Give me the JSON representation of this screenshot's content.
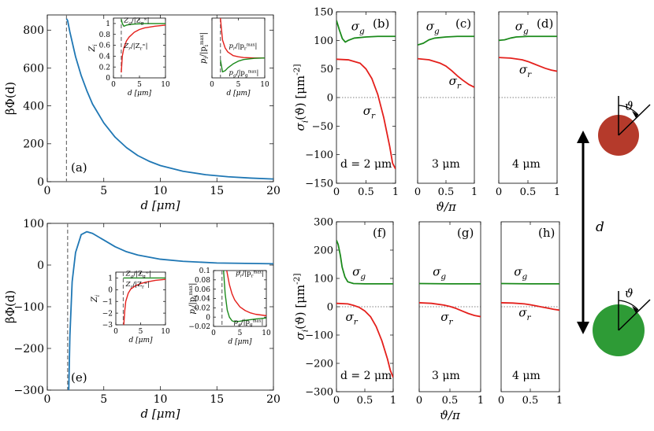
{
  "colors": {
    "blue": "#1f77b4",
    "green": "#1b8a1b",
    "red": "#e4201c",
    "axis": "#000000",
    "dash": "#707070",
    "red_disk": "#b53a2b",
    "green_disk": "#2e9b36"
  },
  "schematic": {
    "distance_label": "d",
    "angle_label": "ϑ"
  },
  "chart_data": [
    {
      "id": "a",
      "type": "line",
      "panel_label": "(a)",
      "xlabel": "d [μm]",
      "ylabel": "βΦ(d)",
      "xlim": [
        0,
        20
      ],
      "ylim": [
        0,
        880
      ],
      "xticks": [
        0,
        5,
        10,
        15,
        20
      ],
      "yticks": [
        0,
        200,
        400,
        600,
        800
      ],
      "dashed_x": 1.7,
      "series": [
        {
          "name": "βΦ(d)",
          "color": "blue",
          "x": [
            1.7,
            1.8,
            2.0,
            2.5,
            3.0,
            3.5,
            4,
            5,
            6,
            7,
            8,
            9,
            10,
            12,
            14,
            16,
            18,
            20
          ],
          "y": [
            860,
            850,
            790,
            660,
            560,
            480,
            410,
            310,
            235,
            180,
            138,
            108,
            85,
            55,
            37,
            26,
            19,
            14
          ]
        }
      ],
      "insets": [
        {
          "id": "a-inset-z",
          "ylabel": "Z_i",
          "xlabel": "d [μm]",
          "xlim": [
            0,
            10
          ],
          "ylim": [
            0,
            1.1
          ],
          "xticks": [
            0,
            5,
            10
          ],
          "yticks": [
            0,
            0.2,
            0.4,
            0.6,
            0.8,
            1
          ],
          "dashed_x": 1.5,
          "series": [
            {
              "name": "Z_g/|Z_g^∞|",
              "color": "green",
              "x": [
                1.5,
                1.7,
                2,
                2.5,
                3,
                4,
                5,
                6,
                8,
                10
              ],
              "y": [
                1.08,
                1.0,
                0.95,
                0.97,
                0.98,
                0.99,
                0.995,
                1.0,
                1.0,
                1.0
              ]
            },
            {
              "name": "Z_r/|Z_r^∞|",
              "color": "red",
              "x": [
                1.5,
                1.7,
                2,
                2.5,
                3,
                4,
                5,
                6,
                8,
                10
              ],
              "y": [
                0.1,
                0.4,
                0.55,
                0.68,
                0.75,
                0.84,
                0.89,
                0.92,
                0.95,
                0.97
              ]
            }
          ],
          "labels": [
            {
              "text": "Z_g/|Z_g^∞|",
              "x": 2.0,
              "y": 1.02,
              "color": "green"
            },
            {
              "text": "Z_r/|Z_r^∞|",
              "x": 2.0,
              "y": 0.55,
              "color": "red"
            }
          ]
        },
        {
          "id": "a-inset-p",
          "ylabel": "p_i/|p_i^max|",
          "xlabel": "d [μm]",
          "xlim": [
            0,
            10
          ],
          "ylim": [
            -0.5,
            1.0
          ],
          "xticks": [
            0,
            5,
            10
          ],
          "yticks": [],
          "dashed_x": 1.6,
          "series": [
            {
              "name": "p_r/|p_r^max|",
              "color": "red",
              "x": [
                1.6,
                2,
                2.5,
                3,
                4,
                5,
                6,
                8,
                10
              ],
              "y": [
                1.0,
                0.45,
                0.25,
                0.15,
                0.06,
                0.03,
                0.01,
                0.0,
                0.0
              ]
            },
            {
              "name": "p_g/|p_g^max|",
              "color": "green",
              "x": [
                1.6,
                2.0,
                2.5,
                3,
                4,
                5,
                6,
                8,
                10
              ],
              "y": [
                -0.05,
                -0.35,
                -0.32,
                -0.25,
                -0.15,
                -0.08,
                -0.04,
                -0.01,
                0.0
              ]
            }
          ],
          "labels": [
            {
              "text": "p_r/|p_r^max|",
              "x": 3.2,
              "y": 0.25,
              "color": "red"
            },
            {
              "text": "p_g/|p_g^max|",
              "x": 3.2,
              "y": -0.42,
              "color": "green"
            }
          ]
        }
      ]
    },
    {
      "id": "e",
      "type": "line",
      "panel_label": "(e)",
      "xlabel": "d [μm]",
      "ylabel": "βΦ(d)",
      "xlim": [
        0,
        20
      ],
      "ylim": [
        -300,
        100
      ],
      "xticks": [
        0,
        5,
        10,
        15,
        20
      ],
      "yticks": [
        -300,
        -200,
        -100,
        0,
        100
      ],
      "dashed_x": 1.8,
      "series": [
        {
          "name": "βΦ(d)",
          "color": "blue",
          "x": [
            1.9,
            2.0,
            2.2,
            2.5,
            3.0,
            3.5,
            4,
            5,
            6,
            7,
            8,
            10,
            12,
            15,
            20
          ],
          "y": [
            -300,
            -170,
            -40,
            30,
            73,
            80,
            76,
            60,
            44,
            32,
            24,
            14,
            9,
            5,
            3
          ]
        }
      ],
      "insets": [
        {
          "id": "e-inset-z",
          "ylabel": "Z_i",
          "xlabel": "d [μm]",
          "xlim": [
            0,
            10
          ],
          "ylim": [
            -3,
            1.5
          ],
          "xticks": [
            0,
            5,
            10
          ],
          "yticks": [
            -3,
            -2,
            -1,
            0,
            1
          ],
          "dashed_x": 1.5,
          "series": [
            {
              "name": "Z_g/|Z_g^∞|",
              "color": "green",
              "x": [
                1.5,
                2,
                3,
                5,
                10
              ],
              "y": [
                1.0,
                1.0,
                1.0,
                1.0,
                1.0
              ]
            },
            {
              "name": "Z_r/|Z_r^∞|",
              "color": "red",
              "x": [
                1.6,
                1.8,
                2,
                2.5,
                3,
                4,
                5,
                6,
                8,
                10
              ],
              "y": [
                -3.0,
                -1.8,
                -1.0,
                -0.3,
                0.05,
                0.35,
                0.52,
                0.64,
                0.8,
                0.88
              ]
            }
          ],
          "labels": [
            {
              "text": "Z_g/|Z_g^∞|",
              "x": 2.0,
              "y": 1.2,
              "color": "green"
            },
            {
              "text": "Z_r/|Z_r^∞|",
              "x": 2.0,
              "y": 0.3,
              "color": "red"
            }
          ]
        },
        {
          "id": "e-inset-p",
          "ylabel": "p_i/|p_i^max|",
          "xlabel": "d [μm]",
          "xlim": [
            0,
            10
          ],
          "ylim": [
            -0.02,
            0.1
          ],
          "xticks": [
            0,
            5,
            10
          ],
          "yticks": [
            -0.02,
            0,
            0.02,
            0.04,
            0.06,
            0.08,
            0.1
          ],
          "dashed_x": 1.6,
          "series": [
            {
              "name": "p_r/|p_r^max|",
              "color": "red",
              "x": [
                2.5,
                3,
                3.5,
                4,
                5,
                6,
                7,
                8,
                10
              ],
              "y": [
                0.1,
                0.07,
                0.05,
                0.037,
                0.022,
                0.014,
                0.009,
                0.006,
                0.003
              ]
            },
            {
              "name": "p_g/|p_g^max|",
              "color": "green",
              "x": [
                1.9,
                2.2,
                2.6,
                3,
                3.5,
                4,
                5,
                6,
                8,
                10
              ],
              "y": [
                0.1,
                0.05,
                0.015,
                0.0,
                -0.008,
                -0.01,
                -0.009,
                -0.007,
                -0.004,
                -0.002
              ]
            }
          ],
          "labels": [
            {
              "text": "p_r/|p_r^max|",
              "x": 4.2,
              "y": 0.09,
              "color": "red"
            },
            {
              "text": "p_g/|p_g^max|",
              "x": 3.8,
              "y": -0.015,
              "color": "green"
            }
          ]
        }
      ]
    },
    {
      "id": "b",
      "type": "line",
      "panel_label": "(b)",
      "annotation": "d = 2 μm",
      "xlabel": "",
      "ylabel": "σ_i(ϑ) [μm^-2]",
      "xlim": [
        0,
        1
      ],
      "ylim": [
        -150,
        150
      ],
      "xticks": [
        0,
        0.5,
        1
      ],
      "yticks": [
        -150,
        -100,
        -50,
        0,
        50,
        100,
        150
      ],
      "zero_line": true,
      "series": [
        {
          "name": "σ_g",
          "color": "green",
          "x": [
            0,
            0.05,
            0.1,
            0.15,
            0.2,
            0.3,
            0.5,
            0.7,
            1.0
          ],
          "y": [
            135,
            118,
            103,
            97,
            100,
            104,
            106,
            107,
            107
          ]
        },
        {
          "name": "σ_r",
          "color": "red",
          "x": [
            0,
            0.2,
            0.4,
            0.5,
            0.6,
            0.7,
            0.8,
            0.9,
            0.95,
            1.0
          ],
          "y": [
            67,
            66,
            60,
            50,
            33,
            5,
            -35,
            -85,
            -115,
            -125
          ]
        }
      ],
      "labels": [
        {
          "text": "σ_g",
          "x": 0.25,
          "y": 118,
          "color": "green"
        },
        {
          "text": "σ_r",
          "x": 0.45,
          "y": -30,
          "color": "red"
        }
      ]
    },
    {
      "id": "c",
      "type": "line",
      "panel_label": "(c)",
      "annotation": "3 μm",
      "xlabel": "ϑ/π",
      "ylabel": "",
      "xlim": [
        0,
        1
      ],
      "ylim": [
        -150,
        150
      ],
      "xticks": [
        0,
        0.5,
        1
      ],
      "yticks": [],
      "zero_line": true,
      "series": [
        {
          "name": "σ_g",
          "color": "green",
          "x": [
            0,
            0.1,
            0.2,
            0.3,
            0.5,
            0.7,
            1.0
          ],
          "y": [
            92,
            95,
            101,
            104,
            106,
            107,
            107
          ]
        },
        {
          "name": "σ_r",
          "color": "red",
          "x": [
            0,
            0.2,
            0.4,
            0.5,
            0.6,
            0.7,
            0.8,
            0.9,
            1.0
          ],
          "y": [
            68,
            66,
            60,
            55,
            47,
            38,
            30,
            23,
            18
          ]
        }
      ],
      "labels": [
        {
          "text": "σ_g",
          "x": 0.15,
          "y": 118,
          "color": "green"
        },
        {
          "text": "σ_r",
          "x": 0.55,
          "y": 22,
          "color": "red"
        }
      ]
    },
    {
      "id": "d",
      "type": "line",
      "panel_label": "(d)",
      "annotation": "4 μm",
      "xlabel": "",
      "ylabel": "",
      "xlim": [
        0,
        1
      ],
      "ylim": [
        -150,
        150
      ],
      "xticks": [
        0,
        0.5,
        1
      ],
      "yticks": [],
      "zero_line": true,
      "series": [
        {
          "name": "σ_g",
          "color": "green",
          "x": [
            0,
            0.1,
            0.2,
            0.3,
            0.5,
            0.7,
            1.0
          ],
          "y": [
            100,
            101,
            104,
            106,
            107,
            107,
            107
          ]
        },
        {
          "name": "σ_r",
          "color": "red",
          "x": [
            0,
            0.2,
            0.4,
            0.5,
            0.6,
            0.7,
            0.8,
            0.9,
            1.0
          ],
          "y": [
            70,
            69,
            66,
            63,
            59,
            55,
            51,
            48,
            46
          ]
        }
      ],
      "labels": [
        {
          "text": "σ_g",
          "x": 0.28,
          "y": 118,
          "color": "green"
        },
        {
          "text": "σ_r",
          "x": 0.35,
          "y": 42,
          "color": "red"
        }
      ]
    },
    {
      "id": "f",
      "type": "line",
      "panel_label": "(f)",
      "annotation": "d = 2 μm",
      "xlabel": "",
      "ylabel": "σ_i(ϑ) [μm^-2]",
      "xlim": [
        0,
        1
      ],
      "ylim": [
        -300,
        300
      ],
      "xticks": [
        0,
        0.5,
        1
      ],
      "yticks": [
        -300,
        -200,
        -100,
        0,
        100,
        200,
        300
      ],
      "zero_line": true,
      "series": [
        {
          "name": "σ_g",
          "color": "green",
          "x": [
            0,
            0.03,
            0.07,
            0.1,
            0.15,
            0.2,
            0.3,
            0.5,
            1.0
          ],
          "y": [
            235,
            220,
            180,
            140,
            105,
            88,
            82,
            81,
            81
          ]
        },
        {
          "name": "σ_r",
          "color": "red",
          "x": [
            0,
            0.2,
            0.3,
            0.4,
            0.5,
            0.6,
            0.7,
            0.8,
            0.9,
            0.95,
            1.0
          ],
          "y": [
            12,
            10,
            5,
            -2,
            -15,
            -35,
            -70,
            -120,
            -185,
            -225,
            -250
          ]
        }
      ],
      "labels": [
        {
          "text": "σ_g",
          "x": 0.28,
          "y": 110,
          "color": "green"
        },
        {
          "text": "σ_r",
          "x": 0.16,
          "y": -50,
          "color": "red"
        }
      ]
    },
    {
      "id": "g",
      "type": "line",
      "panel_label": "(g)",
      "annotation": "3 μm",
      "xlabel": "ϑ/π",
      "ylabel": "",
      "xlim": [
        0,
        1
      ],
      "ylim": [
        -300,
        300
      ],
      "xticks": [
        0,
        0.5,
        1
      ],
      "yticks": [],
      "zero_line": true,
      "series": [
        {
          "name": "σ_g",
          "color": "green",
          "x": [
            0,
            0.5,
            1.0
          ],
          "y": [
            82,
            81,
            81
          ]
        },
        {
          "name": "σ_r",
          "color": "red",
          "x": [
            0,
            0.2,
            0.4,
            0.5,
            0.6,
            0.7,
            0.8,
            0.9,
            1.0
          ],
          "y": [
            14,
            12,
            6,
            1,
            -6,
            -15,
            -24,
            -31,
            -35
          ]
        }
      ],
      "labels": [
        {
          "text": "σ_g",
          "x": 0.22,
          "y": 110,
          "color": "green"
        },
        {
          "text": "σ_r",
          "x": 0.35,
          "y": -50,
          "color": "red"
        }
      ]
    },
    {
      "id": "h",
      "type": "line",
      "panel_label": "(h)",
      "annotation": "4 μm",
      "xlabel": "",
      "ylabel": "",
      "xlim": [
        0,
        1
      ],
      "ylim": [
        -300,
        300
      ],
      "xticks": [
        0,
        0.5,
        1
      ],
      "yticks": [],
      "zero_line": true,
      "series": [
        {
          "name": "σ_g",
          "color": "green",
          "x": [
            0,
            0.5,
            1.0
          ],
          "y": [
            82,
            81,
            81
          ]
        },
        {
          "name": "σ_r",
          "color": "red",
          "x": [
            0,
            0.2,
            0.4,
            0.5,
            0.6,
            0.7,
            0.8,
            0.9,
            1.0
          ],
          "y": [
            14,
            13,
            10,
            7,
            3,
            -1,
            -5,
            -9,
            -12
          ]
        }
      ],
      "labels": [
        {
          "text": "σ_g",
          "x": 0.22,
          "y": 110,
          "color": "green"
        },
        {
          "text": "σ_r",
          "x": 0.3,
          "y": -35,
          "color": "red"
        }
      ]
    }
  ]
}
